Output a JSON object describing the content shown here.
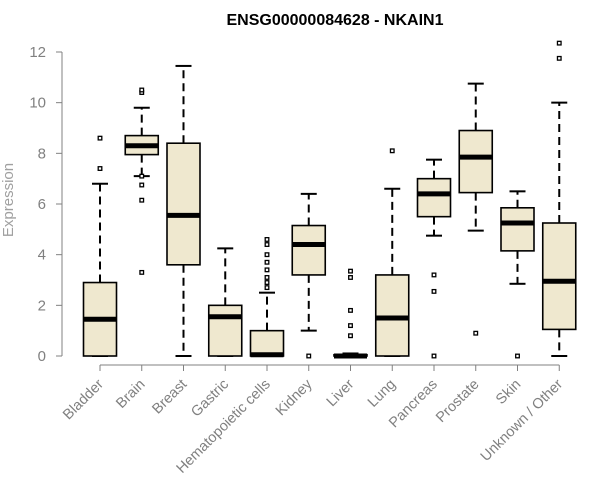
{
  "chart_data": {
    "type": "boxplot",
    "title": "ENSG00000084628 - NKAIN1",
    "xlabel": "",
    "ylabel": "Expression",
    "ylim": [
      0,
      12
    ],
    "yticks": [
      0,
      2,
      4,
      6,
      8,
      10,
      12
    ],
    "box_fill": "#efe8cf",
    "line_color": "#000000",
    "axis_color": "#808080",
    "categories": [
      "Bladder",
      "Brain",
      "Breast",
      "Gastric",
      "Hematopoietic cells",
      "Kidney",
      "Liver",
      "Lung",
      "Pancreas",
      "Prostate",
      "Skin",
      "Unknown / Other"
    ],
    "boxes": [
      {
        "category": "Bladder",
        "whisker_low": 0.0,
        "q1": 0.0,
        "median": 1.45,
        "q3": 2.9,
        "whisker_high": 6.8,
        "outliers": [
          7.4,
          8.6
        ]
      },
      {
        "category": "Brain",
        "whisker_low": 7.1,
        "q1": 7.95,
        "median": 8.3,
        "q3": 8.7,
        "whisker_high": 9.8,
        "outliers": [
          3.3,
          6.15,
          6.75,
          7.1,
          10.4,
          10.5
        ]
      },
      {
        "category": "Breast",
        "whisker_low": 0.0,
        "q1": 3.6,
        "median": 5.55,
        "q3": 8.4,
        "whisker_high": 11.45,
        "outliers": []
      },
      {
        "category": "Gastric",
        "whisker_low": 0.0,
        "q1": 0.0,
        "median": 1.55,
        "q3": 2.0,
        "whisker_high": 4.25,
        "outliers": []
      },
      {
        "category": "Hematopoietic cells",
        "whisker_low": 0.0,
        "q1": 0.0,
        "median": 0.05,
        "q3": 1.0,
        "whisker_high": 2.5,
        "outliers": [
          2.7,
          2.9,
          3.1,
          3.4,
          3.7,
          4.0,
          4.4,
          4.6
        ]
      },
      {
        "category": "Kidney",
        "whisker_low": 1.0,
        "q1": 3.2,
        "median": 4.4,
        "q3": 5.15,
        "whisker_high": 6.4,
        "outliers": [
          0.0
        ]
      },
      {
        "category": "Liver",
        "whisker_low": 0.0,
        "q1": 0.0,
        "median": 0.0,
        "q3": 0.05,
        "whisker_high": 0.1,
        "outliers": [
          0.8,
          1.2,
          1.8,
          3.1,
          3.35
        ]
      },
      {
        "category": "Lung",
        "whisker_low": 0.0,
        "q1": 0.0,
        "median": 1.5,
        "q3": 3.2,
        "whisker_high": 6.6,
        "outliers": [
          8.1
        ]
      },
      {
        "category": "Pancreas",
        "whisker_low": 4.75,
        "q1": 5.5,
        "median": 6.4,
        "q3": 7.0,
        "whisker_high": 7.75,
        "outliers": [
          0.0,
          2.55,
          3.2
        ]
      },
      {
        "category": "Prostate",
        "whisker_low": 4.95,
        "q1": 6.45,
        "median": 7.85,
        "q3": 8.9,
        "whisker_high": 10.75,
        "outliers": [
          0.9
        ]
      },
      {
        "category": "Skin",
        "whisker_low": 2.85,
        "q1": 4.15,
        "median": 5.25,
        "q3": 5.85,
        "whisker_high": 6.5,
        "outliers": [
          0.0
        ]
      },
      {
        "category": "Unknown / Other",
        "whisker_low": 0.0,
        "q1": 1.05,
        "median": 2.95,
        "q3": 5.25,
        "whisker_high": 10.0,
        "outliers": [
          11.75,
          12.35
        ]
      }
    ]
  }
}
